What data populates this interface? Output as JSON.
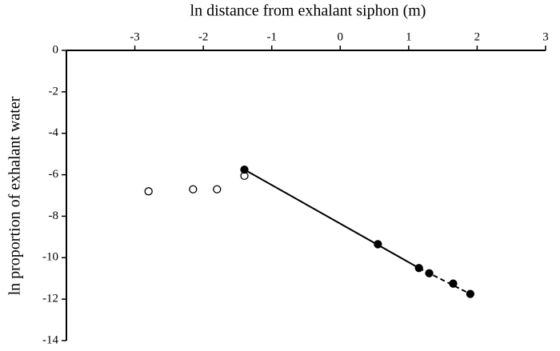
{
  "chart_data": {
    "type": "scatter",
    "x_label": "ln distance from exhalant siphon (m)",
    "y_label": "ln proportion of exhalant water",
    "xlim": [
      -4,
      3
    ],
    "xticks": [
      -3,
      -2,
      -1,
      0,
      1,
      2,
      3
    ],
    "ylim": [
      -14,
      0
    ],
    "yticks": [
      0,
      -2,
      -4,
      -6,
      -8,
      -10,
      -12,
      -14
    ],
    "x_axis_position": "top",
    "color": "#000000",
    "series": [
      {
        "mode": "points",
        "marker": "open",
        "x": [
          -2.8,
          -2.15,
          -1.8,
          -1.4
        ],
        "y": [
          -6.8,
          -6.7,
          -6.7,
          -6.05
        ]
      },
      {
        "mode": "points",
        "marker": "filled",
        "x": [
          -1.4,
          0.55,
          1.15,
          1.3,
          1.65,
          1.9
        ],
        "y": [
          -5.75,
          -9.35,
          -10.5,
          -10.75,
          -11.25,
          -11.75
        ]
      },
      {
        "mode": "line",
        "dash": false,
        "x": [
          -1.4,
          1.15
        ],
        "y": [
          -5.75,
          -10.5
        ]
      },
      {
        "mode": "line",
        "dash": true,
        "x": [
          1.15,
          1.9
        ],
        "y": [
          -10.5,
          -11.75
        ]
      }
    ]
  }
}
